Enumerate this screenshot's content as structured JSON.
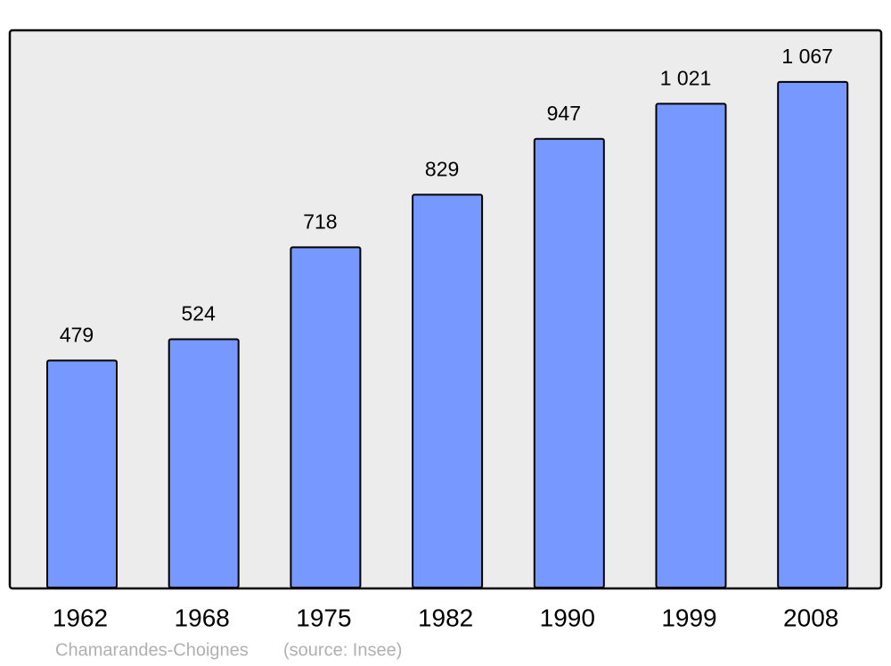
{
  "chart_data": {
    "type": "bar",
    "categories": [
      "1962",
      "1968",
      "1975",
      "1982",
      "1990",
      "1999",
      "2008"
    ],
    "values": [
      479,
      524,
      718,
      829,
      947,
      1021,
      1067
    ],
    "value_labels": [
      "479",
      "524",
      "718",
      "829",
      "947",
      "1 021",
      "1 067"
    ],
    "color": "#7799ff",
    "ylim": [
      0,
      1176
    ],
    "caption": "Chamarandes-Choignes",
    "source": "(source: Insee)"
  }
}
